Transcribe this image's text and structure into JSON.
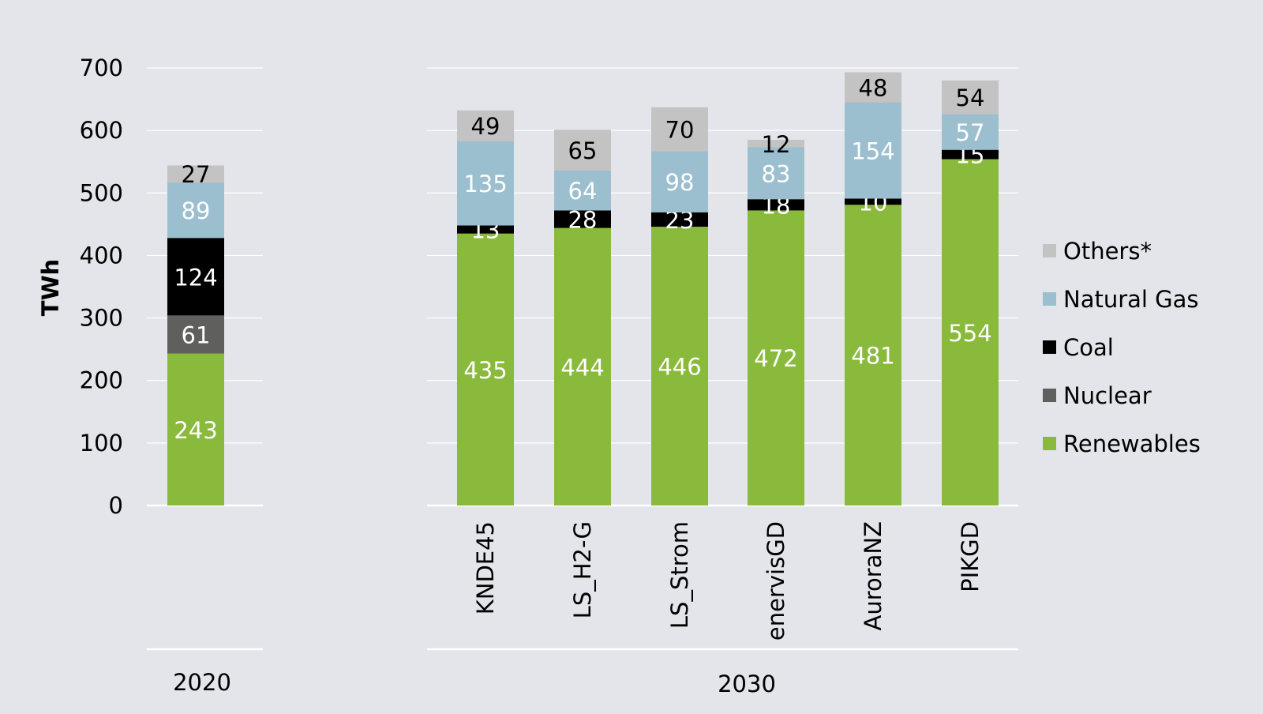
{
  "chart_data": {
    "type": "bar",
    "stacked": true,
    "ylabel": "TWh",
    "ylim": [
      0,
      700
    ],
    "yticks": [
      0,
      100,
      200,
      300,
      400,
      500,
      600,
      700
    ],
    "grid": true,
    "legend_position": "right",
    "groups": [
      {
        "label": "2020",
        "categories": [
          ""
        ]
      },
      {
        "label": "2030",
        "categories": [
          "KNDE45",
          "LS_H2-G",
          "LS_Strom",
          "enervisGD",
          "AuroraNZ",
          "PIKGD"
        ]
      }
    ],
    "categories": [
      "",
      "KNDE45",
      "LS_H2-G",
      "LS_Strom",
      "enervisGD",
      "AuroraNZ",
      "PIKGD"
    ],
    "series": [
      {
        "name": "Renewables",
        "color": "#8aba3c",
        "label_color": "#ffffff",
        "values": [
          243,
          435,
          444,
          446,
          472,
          481,
          554
        ]
      },
      {
        "name": "Nuclear",
        "color": "#5f605d",
        "label_color": "#ffffff",
        "values": [
          61,
          0,
          0,
          0,
          0,
          0,
          0
        ]
      },
      {
        "name": "Coal",
        "color": "#000000",
        "label_color": "#ffffff",
        "values": [
          124,
          13,
          28,
          23,
          18,
          10,
          15
        ]
      },
      {
        "name": "Natural Gas",
        "color": "#9bbfce",
        "label_color": "#ffffff",
        "values": [
          89,
          135,
          64,
          98,
          83,
          154,
          57
        ]
      },
      {
        "name": "Others*",
        "color": "#c3c3c3",
        "label_color": "#000000",
        "values": [
          27,
          49,
          65,
          70,
          12,
          48,
          54
        ]
      }
    ]
  }
}
